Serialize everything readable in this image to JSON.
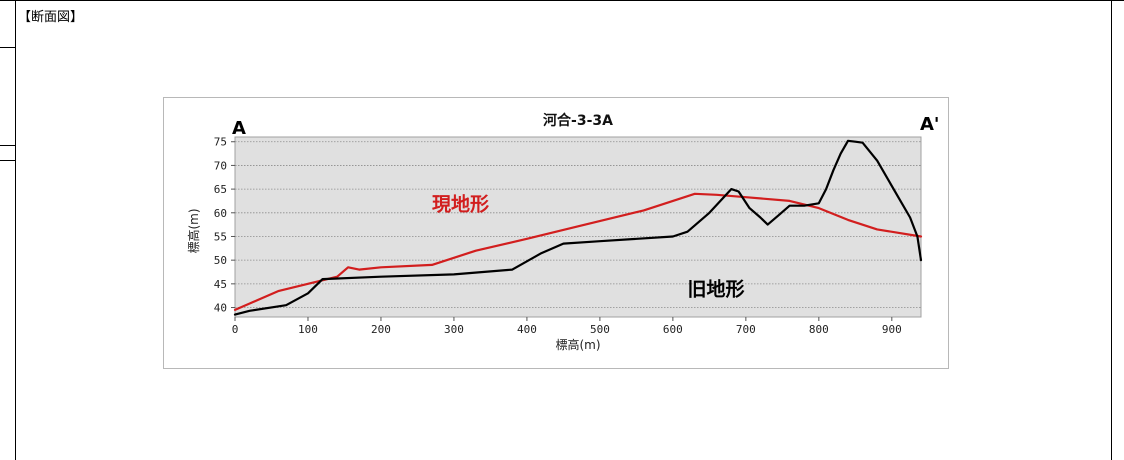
{
  "section_label": "【断面図】",
  "chart_data": {
    "type": "line",
    "title": "河合-3-3A",
    "xlabel": "標高(m)",
    "ylabel": "標高(m)",
    "xlim": [
      0,
      940
    ],
    "ylim": [
      38,
      76
    ],
    "xticks": [
      0,
      100,
      200,
      300,
      400,
      500,
      600,
      700,
      800,
      900
    ],
    "yticks": [
      40,
      45,
      50,
      55,
      60,
      65,
      70,
      75
    ],
    "grid": true,
    "plot_background": "#e0e0e0",
    "start_marker": "A",
    "end_marker": "A'",
    "series": [
      {
        "name": "現地形",
        "color": "#d21e1e",
        "label_at": [
          270,
          60.5
        ],
        "x": [
          0,
          30,
          60,
          100,
          140,
          155,
          170,
          200,
          270,
          330,
          400,
          480,
          560,
          630,
          660,
          700,
          760,
          800,
          840,
          880,
          940
        ],
        "y": [
          39.5,
          41.5,
          43.5,
          45,
          46.5,
          48.5,
          48,
          48.5,
          49,
          52,
          54.5,
          57.5,
          60.5,
          64,
          63.8,
          63.3,
          62.5,
          61,
          58.5,
          56.5,
          55
        ]
      },
      {
        "name": "旧地形",
        "color": "#000000",
        "label_at": [
          620,
          42.5
        ],
        "x": [
          0,
          20,
          70,
          100,
          120,
          200,
          300,
          380,
          420,
          450,
          500,
          600,
          620,
          650,
          680,
          690,
          705,
          720,
          730,
          745,
          760,
          780,
          800,
          810,
          820,
          830,
          840,
          850,
          860,
          880,
          910,
          925,
          935,
          940
        ],
        "y": [
          38.5,
          39.3,
          40.5,
          43,
          46,
          46.5,
          47,
          48,
          51.5,
          53.5,
          54,
          55,
          56,
          60,
          65,
          64.5,
          61,
          59,
          57.5,
          59.5,
          61.5,
          61.5,
          62,
          65,
          69,
          72.5,
          75.2,
          75,
          74.8,
          71,
          63,
          59,
          55,
          50
        ]
      }
    ]
  }
}
